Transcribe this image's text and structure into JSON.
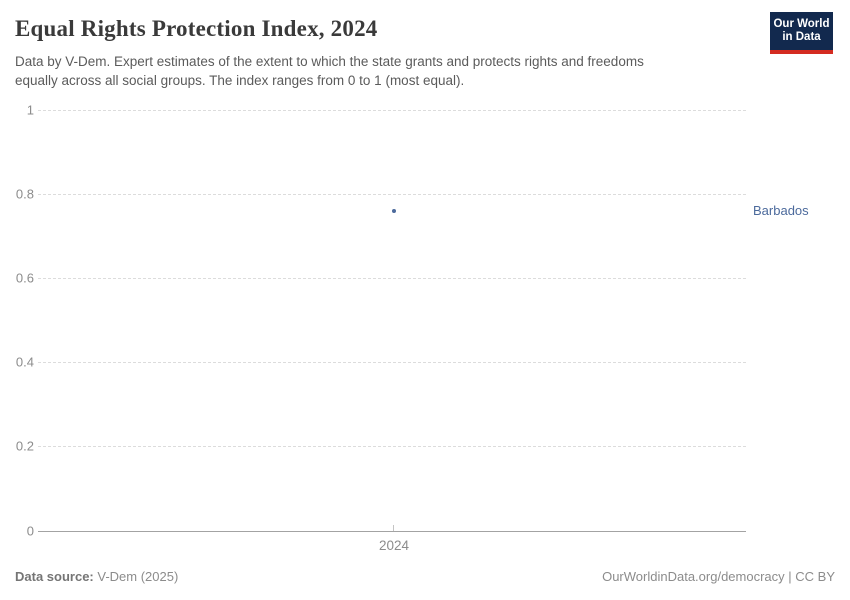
{
  "header": {
    "title": "Equal Rights Protection Index, 2024",
    "subtitle_lines": [
      "Data by V-Dem. Expert estimates of the extent to which the state grants and protects rights and freedoms",
      "equally across all social groups. The index ranges from 0 to 1 (most equal)."
    ],
    "logo": {
      "line1": "Our World",
      "line2": "in Data"
    }
  },
  "chart_data": {
    "type": "scatter",
    "title": "Equal Rights Protection Index, 2024",
    "subtitle": "Data by V-Dem. Expert estimates of the extent to which the state grants and protects rights and freedoms equally across all social groups. The index ranges from 0 to 1 (most equal).",
    "x": [
      2024
    ],
    "series": [
      {
        "name": "Barbados",
        "values": [
          0.76
        ]
      }
    ],
    "xlabel": "",
    "ylabel": "",
    "ylim": [
      0,
      1
    ],
    "yticks": [
      0,
      0.2,
      0.4,
      0.6,
      0.8,
      1
    ],
    "ytick_labels": [
      "0",
      "0.2",
      "0.4",
      "0.6",
      "0.8",
      "1"
    ],
    "xtick_labels": [
      "2024"
    ],
    "grid": true,
    "legend_position": "right-of-point",
    "point_color": "#4c6a9c",
    "entity_label": "Barbados"
  },
  "footer": {
    "source_label": "Data source:",
    "source_value": "V-Dem (2025)",
    "credit_link": "OurWorldinData.org/democracy",
    "license": " | CC BY"
  }
}
